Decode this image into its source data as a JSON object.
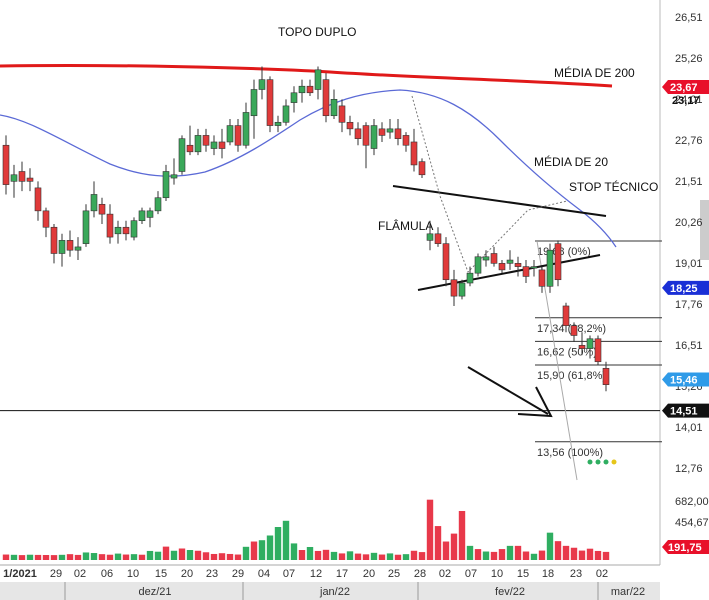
{
  "chart_data": {
    "type": "candlestick",
    "price_axis": {
      "ticks": [
        "26,51",
        "25,26",
        "24,01",
        "22,76",
        "21,51",
        "20,26",
        "19,01",
        "17,76",
        "16,51",
        "15,26",
        "14,01",
        "12,76"
      ],
      "tick_values": [
        26.51,
        25.26,
        24.01,
        22.76,
        21.51,
        20.26,
        19.01,
        17.76,
        16.51,
        15.26,
        14.01,
        12.76
      ],
      "range": [
        11.7,
        27.3
      ]
    },
    "volume_axis": {
      "ticks": [
        "682,00",
        "454,67"
      ],
      "tick_values": [
        682,
        454.67
      ],
      "max": 870
    },
    "badges": [
      {
        "label": "23,67",
        "value": 23.67,
        "color": "#e8102a"
      },
      {
        "label": "23,17",
        "value": 23.17,
        "color": "none"
      },
      {
        "label": "18,25",
        "value": 18.25,
        "color": "#1a2fd6"
      },
      {
        "label": "15,46",
        "value": 15.46,
        "color": "#2f9be8"
      },
      {
        "label": "14,51",
        "value": 14.51,
        "color": "#111111"
      }
    ],
    "volume_badge": {
      "label": "191,75",
      "value": 191.75,
      "color": "#e8102a"
    },
    "x_labels": [
      "1/2021",
      "29",
      "02",
      "06",
      "10",
      "15",
      "20",
      "23",
      "29",
      "04",
      "07",
      "12",
      "17",
      "20",
      "25",
      "28",
      "02",
      "07",
      "10",
      "15",
      "18",
      "23",
      "02"
    ],
    "month_labels": [
      "dez/21",
      "jan/22",
      "fev/22",
      "mar/22"
    ],
    "annotations": [
      "TOPO DUPLO",
      "MÉDIA DE 200",
      "MÉDIA DE 20",
      "STOP TÉCNICO",
      "FLÂMULA"
    ],
    "fibonacci_levels": [
      {
        "label": "19,68 (0%)",
        "value": 19.68
      },
      {
        "label": "17,34 (38,2%)",
        "value": 17.34
      },
      {
        "label": "16,62 (50%)",
        "value": 16.62
      },
      {
        "label": "15,90 (61,8%)",
        "value": 15.9
      },
      {
        "label": "13,56 (100%)",
        "value": 13.56
      }
    ],
    "horizontal_line": 14.51,
    "candles": [
      {
        "o": 22.6,
        "h": 22.9,
        "l": 21.1,
        "c": 21.4
      },
      {
        "o": 21.5,
        "h": 22.0,
        "l": 21.0,
        "c": 21.7
      },
      {
        "o": 21.8,
        "h": 22.1,
        "l": 21.2,
        "c": 21.5
      },
      {
        "o": 21.6,
        "h": 21.9,
        "l": 21.2,
        "c": 21.5
      },
      {
        "o": 21.3,
        "h": 21.5,
        "l": 20.3,
        "c": 20.6
      },
      {
        "o": 20.6,
        "h": 20.7,
        "l": 19.8,
        "c": 20.1
      },
      {
        "o": 20.1,
        "h": 20.2,
        "l": 19.0,
        "c": 19.3
      },
      {
        "o": 19.3,
        "h": 19.9,
        "l": 18.9,
        "c": 19.7
      },
      {
        "o": 19.7,
        "h": 20.0,
        "l": 19.2,
        "c": 19.4
      },
      {
        "o": 19.4,
        "h": 19.8,
        "l": 19.1,
        "c": 19.5
      },
      {
        "o": 19.6,
        "h": 20.8,
        "l": 19.5,
        "c": 20.6
      },
      {
        "o": 20.6,
        "h": 21.5,
        "l": 20.4,
        "c": 21.1
      },
      {
        "o": 20.8,
        "h": 21.0,
        "l": 20.2,
        "c": 20.5
      },
      {
        "o": 20.5,
        "h": 20.8,
        "l": 19.6,
        "c": 19.8
      },
      {
        "o": 19.9,
        "h": 20.3,
        "l": 19.6,
        "c": 20.1
      },
      {
        "o": 20.1,
        "h": 20.3,
        "l": 19.7,
        "c": 19.9
      },
      {
        "o": 19.8,
        "h": 20.4,
        "l": 19.7,
        "c": 20.3
      },
      {
        "o": 20.3,
        "h": 20.7,
        "l": 20.2,
        "c": 20.6
      },
      {
        "o": 20.4,
        "h": 20.7,
        "l": 20.1,
        "c": 20.6
      },
      {
        "o": 20.6,
        "h": 21.2,
        "l": 20.5,
        "c": 21.0
      },
      {
        "o": 21.0,
        "h": 22.0,
        "l": 20.9,
        "c": 21.8
      },
      {
        "o": 21.6,
        "h": 22.2,
        "l": 21.4,
        "c": 21.7
      },
      {
        "o": 21.8,
        "h": 22.9,
        "l": 21.7,
        "c": 22.8
      },
      {
        "o": 22.6,
        "h": 23.2,
        "l": 22.3,
        "c": 22.4
      },
      {
        "o": 22.4,
        "h": 23.1,
        "l": 22.3,
        "c": 22.9
      },
      {
        "o": 22.9,
        "h": 23.1,
        "l": 22.4,
        "c": 22.6
      },
      {
        "o": 22.5,
        "h": 22.9,
        "l": 22.3,
        "c": 22.7
      },
      {
        "o": 22.7,
        "h": 23.1,
        "l": 22.2,
        "c": 22.5
      },
      {
        "o": 22.7,
        "h": 23.4,
        "l": 22.6,
        "c": 23.2
      },
      {
        "o": 23.2,
        "h": 23.4,
        "l": 22.4,
        "c": 22.6
      },
      {
        "o": 22.6,
        "h": 23.9,
        "l": 22.5,
        "c": 23.6
      },
      {
        "o": 23.5,
        "h": 24.6,
        "l": 22.8,
        "c": 24.3
      },
      {
        "o": 24.3,
        "h": 25.0,
        "l": 24.0,
        "c": 24.6
      },
      {
        "o": 24.6,
        "h": 24.7,
        "l": 23.0,
        "c": 23.2
      },
      {
        "o": 23.2,
        "h": 23.5,
        "l": 23.0,
        "c": 23.3
      },
      {
        "o": 23.3,
        "h": 24.0,
        "l": 23.2,
        "c": 23.8
      },
      {
        "o": 23.9,
        "h": 24.4,
        "l": 23.6,
        "c": 24.2
      },
      {
        "o": 24.2,
        "h": 24.6,
        "l": 23.9,
        "c": 24.4
      },
      {
        "o": 24.4,
        "h": 24.6,
        "l": 24.1,
        "c": 24.2
      },
      {
        "o": 24.3,
        "h": 25.0,
        "l": 24.0,
        "c": 24.9
      },
      {
        "o": 24.6,
        "h": 24.8,
        "l": 23.3,
        "c": 23.5
      },
      {
        "o": 23.5,
        "h": 24.3,
        "l": 23.4,
        "c": 24.0
      },
      {
        "o": 23.8,
        "h": 24.0,
        "l": 23.0,
        "c": 23.3
      },
      {
        "o": 23.3,
        "h": 23.5,
        "l": 22.9,
        "c": 23.1
      },
      {
        "o": 23.1,
        "h": 23.3,
        "l": 22.6,
        "c": 22.8
      },
      {
        "o": 23.2,
        "h": 23.3,
        "l": 21.9,
        "c": 22.6
      },
      {
        "o": 22.5,
        "h": 23.4,
        "l": 22.3,
        "c": 23.2
      },
      {
        "o": 23.1,
        "h": 23.3,
        "l": 22.7,
        "c": 22.9
      },
      {
        "o": 23.0,
        "h": 23.4,
        "l": 22.8,
        "c": 23.1
      },
      {
        "o": 23.1,
        "h": 23.4,
        "l": 22.6,
        "c": 22.8
      },
      {
        "o": 22.9,
        "h": 23.0,
        "l": 22.4,
        "c": 22.6
      },
      {
        "o": 22.7,
        "h": 23.1,
        "l": 21.8,
        "c": 22.0
      },
      {
        "o": 22.1,
        "h": 22.2,
        "l": 21.6,
        "c": 21.7
      },
      {
        "o": 19.7,
        "h": 20.3,
        "l": 19.4,
        "c": 19.9
      },
      {
        "o": 19.9,
        "h": 20.1,
        "l": 19.5,
        "c": 19.6
      },
      {
        "o": 19.6,
        "h": 19.8,
        "l": 18.3,
        "c": 18.5
      },
      {
        "o": 18.5,
        "h": 18.8,
        "l": 17.7,
        "c": 18.0
      },
      {
        "o": 18.0,
        "h": 18.5,
        "l": 17.9,
        "c": 18.4
      },
      {
        "o": 18.4,
        "h": 18.9,
        "l": 18.3,
        "c": 18.7
      },
      {
        "o": 18.7,
        "h": 19.3,
        "l": 18.6,
        "c": 19.2
      },
      {
        "o": 19.1,
        "h": 19.4,
        "l": 18.9,
        "c": 19.2
      },
      {
        "o": 19.3,
        "h": 19.5,
        "l": 18.9,
        "c": 19.0
      },
      {
        "o": 19.0,
        "h": 19.1,
        "l": 18.7,
        "c": 18.8
      },
      {
        "o": 19.0,
        "h": 19.4,
        "l": 18.8,
        "c": 19.1
      },
      {
        "o": 19.0,
        "h": 19.2,
        "l": 18.6,
        "c": 18.9
      },
      {
        "o": 18.9,
        "h": 19.1,
        "l": 18.4,
        "c": 18.6
      },
      {
        "o": 18.9,
        "h": 19.1,
        "l": 18.6,
        "c": 18.9
      },
      {
        "o": 18.8,
        "h": 18.9,
        "l": 18.1,
        "c": 18.3
      },
      {
        "o": 18.3,
        "h": 19.6,
        "l": 18.1,
        "c": 19.4
      },
      {
        "o": 19.6,
        "h": 19.7,
        "l": 18.3,
        "c": 18.5
      },
      {
        "o": 17.7,
        "h": 17.8,
        "l": 16.9,
        "c": 17.1
      },
      {
        "o": 17.1,
        "h": 17.2,
        "l": 16.6,
        "c": 16.8
      },
      {
        "o": 16.5,
        "h": 16.9,
        "l": 16.2,
        "c": 16.4
      },
      {
        "o": 16.4,
        "h": 16.8,
        "l": 16.1,
        "c": 16.7
      },
      {
        "o": 16.7,
        "h": 16.8,
        "l": 15.9,
        "c": 16.0
      },
      {
        "o": 15.8,
        "h": 16.0,
        "l": 15.1,
        "c": 15.3
      }
    ],
    "volumes": [
      {
        "v": 58,
        "up": false
      },
      {
        "v": 55,
        "up": true
      },
      {
        "v": 52,
        "up": false
      },
      {
        "v": 56,
        "up": true
      },
      {
        "v": 54,
        "up": false
      },
      {
        "v": 53,
        "up": false
      },
      {
        "v": 52,
        "up": false
      },
      {
        "v": 55,
        "up": true
      },
      {
        "v": 62,
        "up": false
      },
      {
        "v": 54,
        "up": false
      },
      {
        "v": 80,
        "up": true
      },
      {
        "v": 74,
        "up": true
      },
      {
        "v": 62,
        "up": false
      },
      {
        "v": 56,
        "up": false
      },
      {
        "v": 68,
        "up": true
      },
      {
        "v": 58,
        "up": false
      },
      {
        "v": 62,
        "up": true
      },
      {
        "v": 56,
        "up": false
      },
      {
        "v": 96,
        "up": true
      },
      {
        "v": 88,
        "up": true
      },
      {
        "v": 142,
        "up": false
      },
      {
        "v": 98,
        "up": true
      },
      {
        "v": 122,
        "up": false
      },
      {
        "v": 106,
        "up": true
      },
      {
        "v": 98,
        "up": false
      },
      {
        "v": 82,
        "up": false
      },
      {
        "v": 64,
        "up": false
      },
      {
        "v": 72,
        "up": false
      },
      {
        "v": 64,
        "up": false
      },
      {
        "v": 58,
        "up": false
      },
      {
        "v": 140,
        "up": true
      },
      {
        "v": 196,
        "up": false
      },
      {
        "v": 210,
        "up": true
      },
      {
        "v": 260,
        "up": true
      },
      {
        "v": 350,
        "up": true
      },
      {
        "v": 416,
        "up": true
      },
      {
        "v": 176,
        "up": true
      },
      {
        "v": 106,
        "up": false
      },
      {
        "v": 138,
        "up": true
      },
      {
        "v": 96,
        "up": false
      },
      {
        "v": 108,
        "up": false
      },
      {
        "v": 86,
        "up": true
      },
      {
        "v": 70,
        "up": false
      },
      {
        "v": 92,
        "up": true
      },
      {
        "v": 68,
        "up": false
      },
      {
        "v": 60,
        "up": false
      },
      {
        "v": 76,
        "up": true
      },
      {
        "v": 58,
        "up": false
      },
      {
        "v": 70,
        "up": true
      },
      {
        "v": 56,
        "up": false
      },
      {
        "v": 62,
        "up": true
      },
      {
        "v": 98,
        "up": false
      },
      {
        "v": 84,
        "up": false
      },
      {
        "v": 640,
        "up": false
      },
      {
        "v": 360,
        "up": false
      },
      {
        "v": 196,
        "up": false
      },
      {
        "v": 280,
        "up": false
      },
      {
        "v": 520,
        "up": false
      },
      {
        "v": 150,
        "up": true
      },
      {
        "v": 116,
        "up": false
      },
      {
        "v": 90,
        "up": true
      },
      {
        "v": 86,
        "up": false
      },
      {
        "v": 116,
        "up": false
      },
      {
        "v": 150,
        "up": true
      },
      {
        "v": 150,
        "up": false
      },
      {
        "v": 90,
        "up": false
      },
      {
        "v": 66,
        "up": true
      },
      {
        "v": 100,
        "up": false
      },
      {
        "v": 290,
        "up": true
      },
      {
        "v": 200,
        "up": false
      },
      {
        "v": 150,
        "up": false
      },
      {
        "v": 130,
        "up": false
      },
      {
        "v": 100,
        "up": false
      },
      {
        "v": 120,
        "up": false
      },
      {
        "v": 96,
        "up": false
      },
      {
        "v": 86,
        "up": false
      }
    ],
    "colors": {
      "up": "#3aa85a",
      "down": "#e03a3a",
      "ma200": "#e01919",
      "ma20": "#5b6ad6",
      "volume_up": "#2fae61",
      "volume_down": "#e8384a",
      "volume_neutral": "#555555"
    }
  }
}
